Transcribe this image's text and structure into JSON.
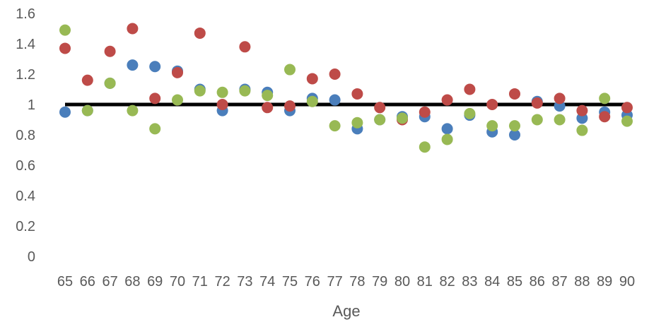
{
  "chart_data": {
    "type": "scatter",
    "title": "",
    "xlabel": "Age",
    "ylabel": "",
    "x": [
      65,
      66,
      67,
      68,
      69,
      70,
      71,
      72,
      73,
      74,
      75,
      76,
      77,
      78,
      79,
      80,
      81,
      82,
      83,
      84,
      85,
      86,
      87,
      88,
      89,
      90
    ],
    "ylim": [
      0,
      1.6
    ],
    "yticks": [
      "0",
      "0.2",
      "0.4",
      "0.6",
      "0.8",
      "1",
      "1.2",
      "1.4",
      "1.6"
    ],
    "grid": false,
    "legend": "none",
    "reference_line": {
      "y": 1,
      "color": "#000000"
    },
    "series": [
      {
        "color": "#4a7ebb",
        "values": [
          0.95,
          0.96,
          1.14,
          1.26,
          1.25,
          1.22,
          1.1,
          0.96,
          1.1,
          1.08,
          0.96,
          1.04,
          1.03,
          0.84,
          0.9,
          0.92,
          0.92,
          0.84,
          0.93,
          0.82,
          0.8,
          1.02,
          0.99,
          0.91,
          0.95,
          0.93
        ]
      },
      {
        "color": "#be4b48",
        "values": [
          1.37,
          1.16,
          1.35,
          1.5,
          1.04,
          1.21,
          1.47,
          1.0,
          1.38,
          0.98,
          0.99,
          1.17,
          1.2,
          1.07,
          0.98,
          0.9,
          0.95,
          1.03,
          1.1,
          1.0,
          1.07,
          1.01,
          1.04,
          0.96,
          0.92,
          0.98
        ]
      },
      {
        "color": "#98b954",
        "values": [
          1.49,
          0.96,
          1.14,
          0.96,
          0.84,
          1.03,
          1.09,
          1.08,
          1.09,
          1.06,
          1.23,
          1.02,
          0.86,
          0.88,
          0.9,
          0.91,
          0.72,
          0.77,
          0.94,
          0.86,
          0.86,
          0.9,
          0.9,
          0.83,
          1.04,
          0.89
        ]
      }
    ]
  }
}
